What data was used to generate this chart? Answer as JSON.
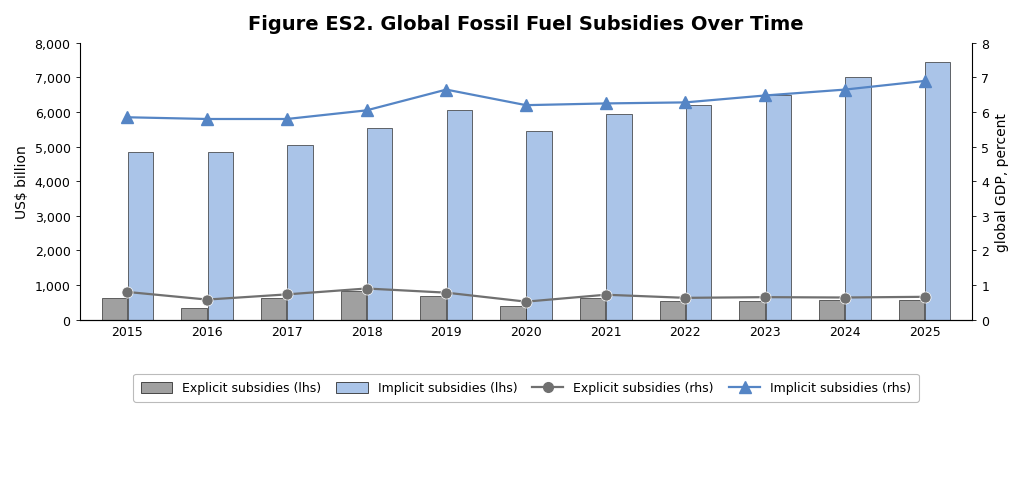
{
  "years": [
    2015,
    2016,
    2017,
    2018,
    2019,
    2020,
    2021,
    2022,
    2023,
    2024,
    2025
  ],
  "explicit_lhs": [
    620,
    350,
    620,
    830,
    680,
    380,
    620,
    530,
    550,
    560,
    580
  ],
  "implicit_lhs": [
    4850,
    4850,
    5050,
    5550,
    6050,
    5450,
    5950,
    6200,
    6500,
    7000,
    7450
  ],
  "explicit_rhs": [
    0.8,
    0.58,
    0.73,
    0.9,
    0.78,
    0.52,
    0.72,
    0.63,
    0.65,
    0.64,
    0.66
  ],
  "implicit_rhs": [
    5.85,
    5.8,
    5.8,
    6.05,
    6.65,
    6.2,
    6.25,
    6.28,
    6.48,
    6.65,
    6.9
  ],
  "title": "Figure ES2. Global Fossil Fuel Subsidies Over Time",
  "ylabel_left": "US$ billion",
  "ylabel_right": "global GDP, percent",
  "ylim_left": [
    0,
    8000
  ],
  "ylim_right": [
    0,
    8
  ],
  "yticks_left": [
    0,
    1000,
    2000,
    3000,
    4000,
    5000,
    6000,
    7000,
    8000
  ],
  "yticks_right": [
    0,
    1,
    2,
    3,
    4,
    5,
    6,
    7,
    8
  ],
  "explicit_bar_color": "#a0a0a0",
  "implicit_bar_color": "#aac4e8",
  "explicit_line_color": "#707070",
  "implicit_line_color": "#5585c5",
  "bar_edge_color": "#303030",
  "background_color": "#ffffff",
  "title_fontsize": 14,
  "label_fontsize": 10,
  "tick_fontsize": 9,
  "legend_fontsize": 9,
  "bar_width": 0.32,
  "bar_gap": 0.01
}
